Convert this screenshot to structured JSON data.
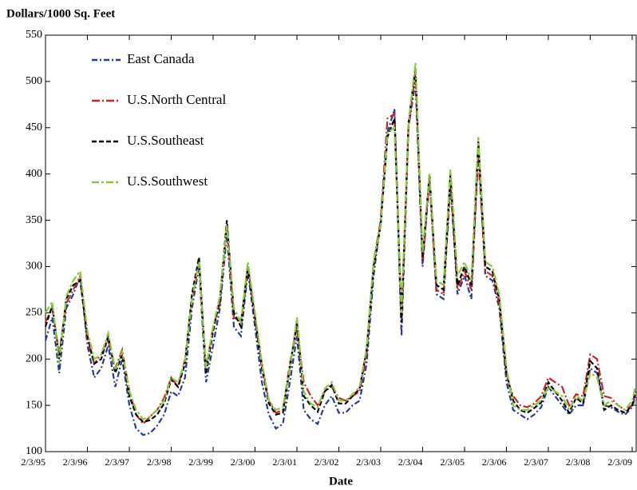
{
  "chart_data": {
    "type": "line",
    "ylabel": "Dollars/1000 Sq. Feet",
    "xlabel": "Date",
    "xlim": [
      "1995-02-03",
      "2009-03-10"
    ],
    "ylim": [
      100,
      550
    ],
    "yticks": [
      100,
      150,
      200,
      250,
      300,
      350,
      400,
      450,
      500,
      550
    ],
    "xticks": [
      {
        "value": "1995-02-03",
        "label": "2/3/95"
      },
      {
        "value": "1996-02-03",
        "label": "2/3/96"
      },
      {
        "value": "1997-02-03",
        "label": "2/3/97"
      },
      {
        "value": "1998-02-03",
        "label": "2/3/98"
      },
      {
        "value": "1999-02-03",
        "label": "2/3/99"
      },
      {
        "value": "2000-02-03",
        "label": "2/3/00"
      },
      {
        "value": "2001-02-03",
        "label": "2/3/01"
      },
      {
        "value": "2002-02-03",
        "label": "2/3/02"
      },
      {
        "value": "2003-02-03",
        "label": "2/3/03"
      },
      {
        "value": "2004-02-03",
        "label": "2/3/04"
      },
      {
        "value": "2005-02-03",
        "label": "2/3/05"
      },
      {
        "value": "2006-02-03",
        "label": "2/3/06"
      },
      {
        "value": "2007-02-03",
        "label": "2/3/07"
      },
      {
        "value": "2008-02-03",
        "label": "2/3/08"
      },
      {
        "value": "2009-02-03",
        "label": "2/3/09"
      }
    ],
    "legend": "upper left",
    "x": [
      "1995-02-03",
      "1995-04-03",
      "1995-06-03",
      "1995-08-03",
      "1995-10-03",
      "1995-12-03",
      "1996-02-03",
      "1996-04-03",
      "1996-06-03",
      "1996-08-03",
      "1996-10-03",
      "1996-12-03",
      "1997-02-03",
      "1997-04-03",
      "1997-06-03",
      "1997-08-03",
      "1997-10-03",
      "1997-12-03",
      "1998-02-03",
      "1998-04-03",
      "1998-06-03",
      "1998-08-03",
      "1998-10-03",
      "1998-12-03",
      "1999-02-03",
      "1999-04-03",
      "1999-06-03",
      "1999-08-03",
      "1999-10-03",
      "1999-12-03",
      "2000-02-03",
      "2000-04-03",
      "2000-06-03",
      "2000-08-03",
      "2000-10-03",
      "2000-12-03",
      "2001-02-03",
      "2001-04-03",
      "2001-06-03",
      "2001-08-03",
      "2001-10-03",
      "2001-12-03",
      "2002-02-03",
      "2002-04-03",
      "2002-06-03",
      "2002-08-03",
      "2002-10-03",
      "2002-12-03",
      "2003-02-03",
      "2003-04-03",
      "2003-06-03",
      "2003-08-03",
      "2003-10-03",
      "2003-12-03",
      "2004-02-03",
      "2004-04-03",
      "2004-06-03",
      "2004-08-03",
      "2004-10-03",
      "2004-12-03",
      "2005-02-03",
      "2005-04-03",
      "2005-06-03",
      "2005-08-03",
      "2005-10-03",
      "2005-12-03",
      "2006-02-03",
      "2006-04-03",
      "2006-06-03",
      "2006-08-03",
      "2006-10-03",
      "2006-12-03",
      "2007-02-03",
      "2007-04-03",
      "2007-06-03",
      "2007-08-03",
      "2007-10-03",
      "2007-12-03",
      "2008-02-03",
      "2008-04-03",
      "2008-06-03",
      "2008-08-03",
      "2008-10-03",
      "2008-12-03",
      "2009-02-03",
      "2009-03-03"
    ],
    "series": [
      {
        "name": "East Canada",
        "color": "#2b3a8f",
        "values": [
          220,
          245,
          185,
          255,
          270,
          290,
          215,
          180,
          190,
          215,
          170,
          200,
          150,
          125,
          118,
          120,
          128,
          140,
          165,
          160,
          180,
          255,
          300,
          175,
          215,
          255,
          335,
          235,
          225,
          295,
          235,
          175,
          140,
          125,
          130,
          175,
          225,
          145,
          135,
          130,
          150,
          160,
          142,
          142,
          150,
          155,
          195,
          290,
          350,
          445,
          470,
          225,
          450,
          500,
          300,
          395,
          270,
          265,
          390,
          270,
          290,
          265,
          430,
          290,
          285,
          255,
          175,
          145,
          140,
          135,
          140,
          148,
          170,
          160,
          150,
          140,
          150,
          150,
          190,
          185,
          150,
          148,
          143,
          140,
          148,
          160
        ]
      },
      {
        "name": "U.S.North Central",
        "color": "#c0282d",
        "values": [
          240,
          255,
          205,
          260,
          275,
          290,
          220,
          195,
          205,
          220,
          190,
          210,
          165,
          140,
          130,
          138,
          145,
          158,
          180,
          170,
          200,
          265,
          305,
          190,
          235,
          260,
          345,
          245,
          240,
          300,
          245,
          195,
          155,
          142,
          145,
          195,
          235,
          175,
          160,
          150,
          165,
          170,
          158,
          155,
          160,
          165,
          205,
          305,
          350,
          460,
          465,
          245,
          450,
          510,
          305,
          395,
          275,
          270,
          395,
          275,
          295,
          275,
          420,
          295,
          290,
          260,
          180,
          160,
          150,
          148,
          152,
          160,
          180,
          175,
          170,
          150,
          162,
          160,
          205,
          200,
          160,
          158,
          150,
          145,
          150,
          160
        ]
      },
      {
        "name": "U.S.Southeast",
        "color": "#000000",
        "values": [
          235,
          258,
          200,
          265,
          280,
          285,
          225,
          195,
          200,
          225,
          185,
          205,
          160,
          140,
          132,
          134,
          140,
          152,
          178,
          170,
          195,
          270,
          310,
          185,
          230,
          265,
          350,
          250,
          235,
          300,
          245,
          190,
          152,
          140,
          142,
          190,
          240,
          160,
          150,
          143,
          165,
          172,
          152,
          152,
          160,
          168,
          210,
          300,
          345,
          440,
          460,
          240,
          455,
          515,
          310,
          400,
          280,
          275,
          400,
          280,
          300,
          280,
          435,
          300,
          295,
          265,
          185,
          155,
          145,
          142,
          147,
          153,
          175,
          165,
          155,
          142,
          158,
          152,
          198,
          190,
          145,
          150,
          145,
          142,
          150,
          165
        ]
      },
      {
        "name": "U.S.Southwest",
        "color": "#8cc63f",
        "values": [
          250,
          262,
          195,
          268,
          285,
          295,
          230,
          200,
          205,
          228,
          188,
          208,
          165,
          145,
          135,
          138,
          145,
          155,
          180,
          175,
          198,
          265,
          305,
          190,
          235,
          268,
          345,
          255,
          240,
          305,
          250,
          195,
          155,
          145,
          148,
          190,
          245,
          165,
          152,
          148,
          168,
          175,
          155,
          155,
          162,
          170,
          212,
          305,
          345,
          445,
          450,
          250,
          455,
          520,
          315,
          400,
          285,
          280,
          405,
          290,
          305,
          285,
          440,
          305,
          300,
          270,
          190,
          150,
          145,
          145,
          150,
          155,
          170,
          165,
          160,
          145,
          160,
          155,
          185,
          180,
          150,
          155,
          150,
          145,
          155,
          170
        ]
      }
    ]
  }
}
